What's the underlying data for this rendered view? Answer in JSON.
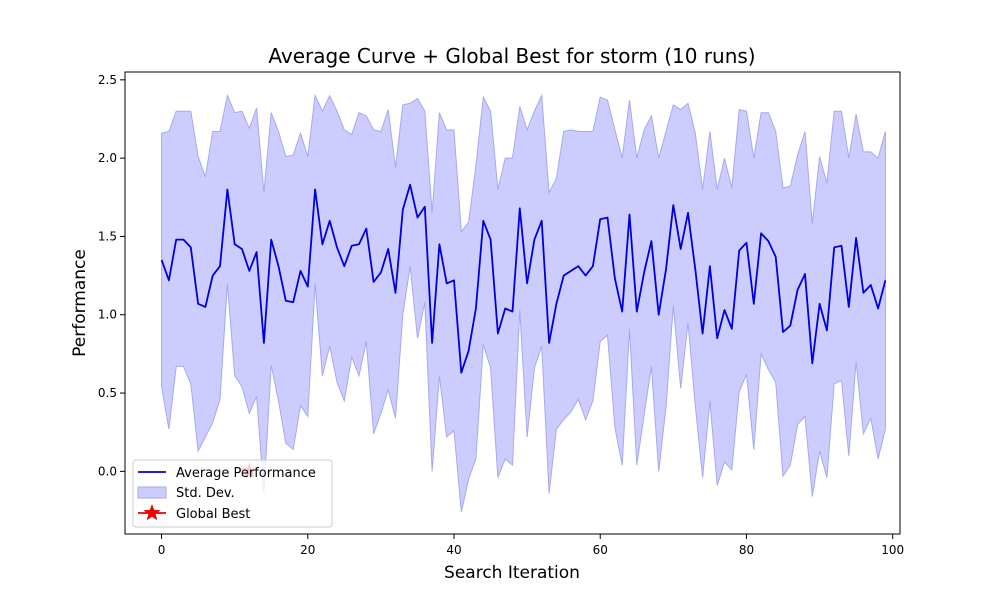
{
  "chart_data": {
    "type": "line",
    "title": "Average Curve + Global Best for storm (10 runs)",
    "xlabel": "Search Iteration",
    "ylabel": "Performance",
    "xlim": [
      -5,
      101
    ],
    "ylim": [
      -0.4,
      2.55
    ],
    "x_ticks": [
      0,
      20,
      40,
      60,
      80,
      100
    ],
    "y_ticks": [
      0.0,
      0.5,
      1.0,
      1.5,
      2.0,
      2.5
    ],
    "x_tick_labels": [
      "0",
      "20",
      "40",
      "60",
      "80",
      "100"
    ],
    "y_tick_labels": [
      "0.0",
      "0.5",
      "1.0",
      "1.5",
      "2.0",
      "2.5"
    ],
    "grid": false,
    "legend_position": "lower-left",
    "legend": [
      "Average Performance",
      "Std. Dev.",
      "Global Best"
    ],
    "colors": {
      "line": "#0000dd",
      "band_fill": "#ccccff",
      "band_edge": "#a8a8ee",
      "star": "#ee0000"
    },
    "global_best": {
      "x": 12,
      "y": 0.0
    },
    "series": [
      {
        "name": "Average Performance",
        "x": [
          0,
          1,
          2,
          3,
          4,
          5,
          6,
          7,
          8,
          9,
          10,
          11,
          12,
          13,
          14,
          15,
          16,
          17,
          18,
          19,
          20,
          21,
          22,
          23,
          24,
          25,
          26,
          27,
          28,
          29,
          30,
          31,
          32,
          33,
          34,
          35,
          36,
          37,
          38,
          39,
          40,
          41,
          42,
          43,
          44,
          45,
          46,
          47,
          48,
          49,
          50,
          51,
          52,
          53,
          54,
          55,
          56,
          57,
          58,
          59,
          60,
          61,
          62,
          63,
          64,
          65,
          66,
          67,
          68,
          69,
          70,
          71,
          72,
          73,
          74,
          75,
          76,
          77,
          78,
          79,
          80,
          81,
          82,
          83,
          84,
          85,
          86,
          87,
          88,
          89,
          90,
          91,
          92,
          93,
          94,
          95,
          96,
          97,
          98,
          99
        ],
        "values": [
          1.35,
          1.22,
          1.48,
          1.48,
          1.43,
          1.07,
          1.05,
          1.25,
          1.31,
          1.8,
          1.45,
          1.42,
          1.28,
          1.4,
          0.82,
          1.48,
          1.31,
          1.09,
          1.08,
          1.28,
          1.18,
          1.8,
          1.45,
          1.6,
          1.43,
          1.31,
          1.44,
          1.45,
          1.55,
          1.21,
          1.27,
          1.42,
          1.14,
          1.67,
          1.83,
          1.62,
          1.69,
          0.82,
          1.45,
          1.2,
          1.22,
          0.63,
          0.77,
          1.04,
          1.6,
          1.48,
          0.88,
          1.04,
          1.02,
          1.68,
          1.2,
          1.48,
          1.6,
          0.82,
          1.07,
          1.25,
          1.28,
          1.31,
          1.25,
          1.31,
          1.61,
          1.62,
          1.23,
          1.02,
          1.64,
          1.02,
          1.27,
          1.47,
          1.0,
          1.29,
          1.7,
          1.42,
          1.65,
          1.29,
          0.88,
          1.31,
          0.85,
          1.03,
          0.91,
          1.41,
          1.46,
          1.07,
          1.52,
          1.47,
          1.37,
          0.89,
          0.93,
          1.16,
          1.26,
          0.69,
          1.07,
          0.9,
          1.43,
          1.44,
          1.05,
          1.49,
          1.14,
          1.19,
          1.04,
          1.22
        ]
      },
      {
        "name": "Std. Dev.",
        "upper": [
          2.16,
          2.17,
          2.3,
          2.3,
          2.3,
          2.01,
          1.88,
          2.17,
          2.17,
          2.4,
          2.29,
          2.3,
          2.19,
          2.32,
          1.78,
          2.29,
          2.17,
          2.01,
          2.02,
          2.16,
          2.01,
          2.4,
          2.3,
          2.4,
          2.3,
          2.18,
          2.15,
          2.29,
          2.27,
          2.18,
          2.17,
          2.31,
          1.94,
          2.34,
          2.35,
          2.38,
          2.3,
          1.65,
          2.29,
          2.18,
          2.18,
          1.53,
          1.59,
          1.95,
          2.39,
          2.3,
          1.8,
          2.0,
          2.0,
          2.33,
          2.18,
          2.3,
          2.4,
          1.78,
          1.87,
          2.17,
          2.18,
          2.17,
          2.17,
          2.17,
          2.39,
          2.37,
          2.18,
          2.0,
          2.37,
          2.0,
          2.18,
          2.27,
          2.0,
          2.17,
          2.34,
          2.31,
          2.35,
          2.16,
          1.8,
          2.17,
          1.8,
          2.0,
          1.81,
          2.31,
          2.3,
          2.0,
          2.29,
          2.29,
          2.17,
          1.81,
          1.82,
          2.02,
          2.17,
          1.58,
          2.01,
          1.84,
          2.3,
          2.3,
          2.0,
          2.28,
          2.04,
          2.04,
          2.0,
          2.17
        ],
        "lower": [
          0.54,
          0.27,
          0.67,
          0.67,
          0.56,
          0.13,
          0.22,
          0.31,
          0.46,
          1.2,
          0.61,
          0.54,
          0.37,
          0.48,
          -0.14,
          0.68,
          0.45,
          0.18,
          0.14,
          0.42,
          0.35,
          1.2,
          0.61,
          0.8,
          0.57,
          0.45,
          0.73,
          0.61,
          0.83,
          0.24,
          0.37,
          0.52,
          0.34,
          1.0,
          1.31,
          0.85,
          1.08,
          0.0,
          0.61,
          0.22,
          0.26,
          -0.26,
          -0.05,
          0.08,
          0.81,
          0.66,
          -0.04,
          0.08,
          0.04,
          1.03,
          0.22,
          0.66,
          0.8,
          -0.14,
          0.27,
          0.33,
          0.38,
          0.46,
          0.33,
          0.45,
          0.83,
          0.87,
          0.28,
          0.04,
          0.91,
          0.04,
          0.36,
          0.67,
          0.0,
          0.41,
          1.06,
          0.53,
          0.95,
          0.42,
          -0.04,
          0.45,
          -0.09,
          0.06,
          0.01,
          0.51,
          0.62,
          0.14,
          0.75,
          0.65,
          0.57,
          -0.03,
          0.04,
          0.3,
          0.35,
          -0.16,
          0.13,
          -0.04,
          0.56,
          0.58,
          0.1,
          0.7,
          0.24,
          0.34,
          0.08,
          0.27
        ]
      }
    ]
  }
}
